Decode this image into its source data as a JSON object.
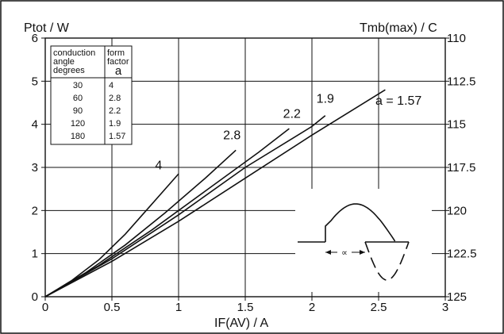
{
  "chart_data": {
    "type": "line",
    "xlabel": "IF(AV) / A",
    "ylabel": "Ptot / W",
    "y2label": "Tmb(max) / C",
    "xlim": [
      0,
      3
    ],
    "ylim": [
      0,
      6
    ],
    "x_ticks": [
      "0",
      "0.5",
      "1",
      "1.5",
      "2",
      "2.5",
      "3"
    ],
    "y_ticks": [
      "0",
      "1",
      "2",
      "3",
      "4",
      "5",
      "6"
    ],
    "y2_ticks": [
      "125",
      "122.5",
      "120",
      "117.5",
      "115",
      "112.5",
      "110"
    ],
    "grid": true,
    "series": [
      {
        "name": "4",
        "label_x": 0.85,
        "label_y": 2.95,
        "points": [
          [
            0,
            0
          ],
          [
            0.2,
            0.38
          ],
          [
            0.4,
            0.85
          ],
          [
            0.6,
            1.45
          ],
          [
            0.8,
            2.15
          ],
          [
            1.0,
            2.85
          ]
        ]
      },
      {
        "name": "2.8",
        "label_x": 1.4,
        "label_y": 3.65,
        "points": [
          [
            0,
            0
          ],
          [
            0.3,
            0.55
          ],
          [
            0.6,
            1.2
          ],
          [
            0.9,
            1.95
          ],
          [
            1.2,
            2.75
          ],
          [
            1.43,
            3.4
          ]
        ]
      },
      {
        "name": "2.2",
        "label_x": 1.85,
        "label_y": 4.15,
        "points": [
          [
            0,
            0
          ],
          [
            0.4,
            0.72
          ],
          [
            0.8,
            1.55
          ],
          [
            1.2,
            2.45
          ],
          [
            1.6,
            3.35
          ],
          [
            1.83,
            3.9
          ]
        ]
      },
      {
        "name": "1.9",
        "label_x": 2.1,
        "label_y": 4.5,
        "points": [
          [
            0,
            0
          ],
          [
            0.5,
            0.88
          ],
          [
            1.0,
            1.9
          ],
          [
            1.5,
            3.0
          ],
          [
            2.0,
            3.95
          ],
          [
            2.1,
            4.2
          ]
        ]
      },
      {
        "name": "a = 1.57",
        "label_x": 2.65,
        "label_y": 4.45,
        "points": [
          [
            0,
            0
          ],
          [
            0.5,
            0.82
          ],
          [
            1.0,
            1.75
          ],
          [
            1.5,
            2.75
          ],
          [
            2.0,
            3.75
          ],
          [
            2.55,
            4.8
          ]
        ]
      }
    ],
    "legend_table": {
      "headers": [
        "conduction angle degrees",
        "form factor a"
      ],
      "header_lines": [
        [
          "conduction",
          "angle",
          "degrees"
        ],
        [
          "form",
          "factor",
          "a"
        ]
      ],
      "rows": [
        [
          "30",
          "4"
        ],
        [
          "60",
          "2.8"
        ],
        [
          "90",
          "2.2"
        ],
        [
          "120",
          "1.9"
        ],
        [
          "180",
          "1.57"
        ]
      ],
      "placement": "top-left"
    },
    "inset": {
      "symbol": "∝",
      "placement": "bottom-right"
    }
  }
}
